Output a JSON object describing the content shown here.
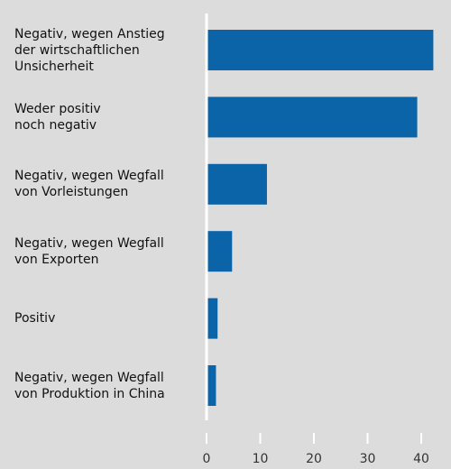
{
  "chart_data": {
    "type": "bar",
    "orientation": "horizontal",
    "categories": [
      "Negativ, wegen Anstieg\nder wirtschaftlichen\nUnsicherheit",
      "Weder positiv\nnoch negativ",
      "Negativ, wegen Wegfall\nvon Vorleistungen",
      "Negativ, wegen Wegfall\nvon Exporten",
      "Positiv",
      "Negativ, wegen Wegfall\nvon Produktion in China"
    ],
    "values": [
      42,
      39,
      11,
      4.5,
      1.8,
      1.5
    ],
    "color": "#0b63a8",
    "xlim": [
      0,
      45
    ],
    "xticks": [
      0,
      10,
      20,
      30,
      40
    ]
  }
}
